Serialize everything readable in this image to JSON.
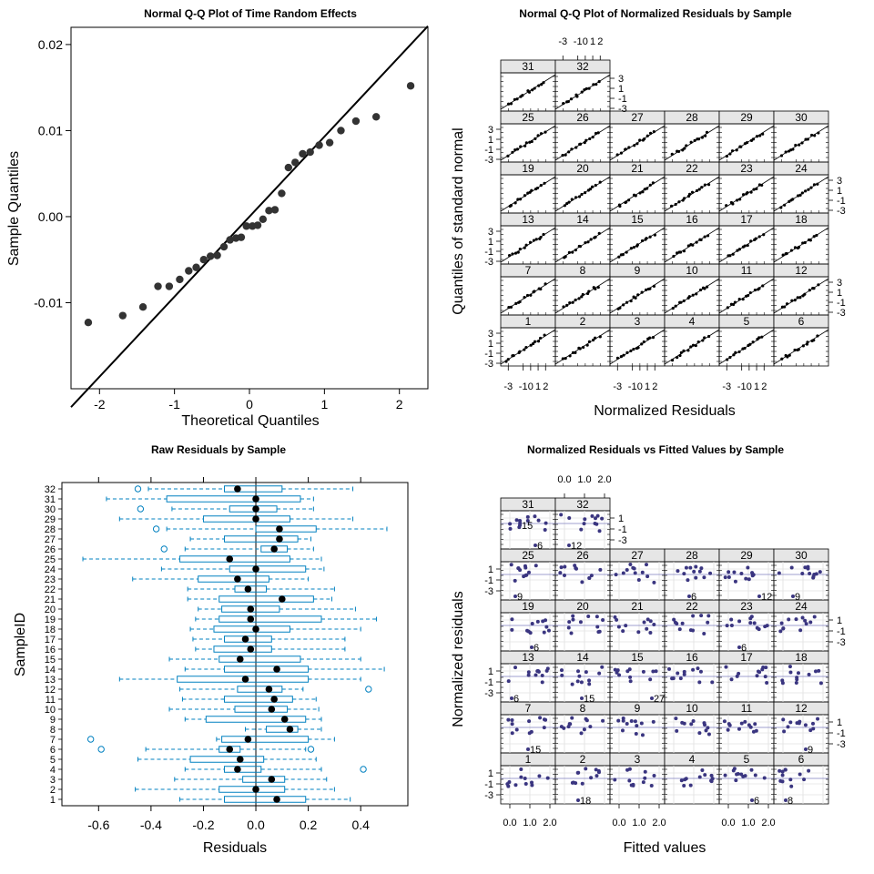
{
  "chart_data": [
    {
      "id": "qq_random",
      "type": "scatter",
      "title": "Normal Q-Q Plot of Time Random Effects",
      "xlabel": "Theoretical Quantiles",
      "ylabel": "Sample Quantiles",
      "xlim": [
        -2.38,
        2.38
      ],
      "ylim": [
        -0.02,
        0.022
      ],
      "xticks": [
        -2,
        -1,
        0,
        1,
        2
      ],
      "xtick_labels": [
        "-2",
        "-1",
        "0",
        "1",
        "2"
      ],
      "yticks": [
        -0.01,
        0.0,
        0.01,
        0.02
      ],
      "ytick_labels": [
        "-0.01",
        "0.00",
        "0.01",
        "0.02"
      ],
      "reference_line": {
        "slope": 0.0093,
        "intercept": 0.0
      },
      "points": [
        [
          -2.15,
          -0.0123
        ],
        [
          -1.69,
          -0.0115
        ],
        [
          -1.42,
          -0.0105
        ],
        [
          -1.22,
          -0.0081
        ],
        [
          -1.07,
          -0.0081
        ],
        [
          -0.93,
          -0.0073
        ],
        [
          -0.81,
          -0.0063
        ],
        [
          -0.71,
          -0.0059
        ],
        [
          -0.61,
          -0.005
        ],
        [
          -0.52,
          -0.0046
        ],
        [
          -0.43,
          -0.0045
        ],
        [
          -0.34,
          -0.0035
        ],
        [
          -0.26,
          -0.0027
        ],
        [
          -0.18,
          -0.0025
        ],
        [
          -0.11,
          -0.0024
        ],
        [
          -0.04,
          -0.0011
        ],
        [
          0.04,
          -0.0011
        ],
        [
          0.11,
          -0.001
        ],
        [
          0.18,
          -0.0003
        ],
        [
          0.26,
          0.0007
        ],
        [
          0.34,
          0.0008
        ],
        [
          0.43,
          0.0027
        ],
        [
          0.52,
          0.0057
        ],
        [
          0.61,
          0.0063
        ],
        [
          0.71,
          0.0073
        ],
        [
          0.81,
          0.0075
        ],
        [
          0.93,
          0.0083
        ],
        [
          1.07,
          0.0086
        ],
        [
          1.22,
          0.01
        ],
        [
          1.42,
          0.0111
        ],
        [
          1.69,
          0.0116
        ],
        [
          2.15,
          0.0152
        ]
      ]
    },
    {
      "id": "qq_panels",
      "type": "scatter",
      "title": "Normal Q-Q Plot of Normalized Residuals by Sample",
      "xlabel": "Normalized Residuals",
      "ylabel": "Quantiles of standard normal",
      "axis_ticks": [
        "-3",
        "-1",
        "0",
        "1",
        "2"
      ],
      "y_axis_ticks": [
        "3",
        "1",
        "-1",
        "-3"
      ],
      "panels": [
        "1",
        "2",
        "3",
        "4",
        "5",
        "6",
        "7",
        "8",
        "9",
        "10",
        "11",
        "12",
        "13",
        "14",
        "15",
        "16",
        "17",
        "18",
        "19",
        "20",
        "21",
        "22",
        "23",
        "24",
        "25",
        "26",
        "27",
        "28",
        "29",
        "30",
        "31",
        "32"
      ]
    },
    {
      "id": "raw_box",
      "type": "box",
      "title": "Raw Residuals by Sample",
      "xlabel": "Residuals",
      "ylabel": "SampleID",
      "xlim": [
        -0.74,
        0.58
      ],
      "xticks": [
        -0.6,
        -0.4,
        -0.2,
        0.0,
        0.2,
        0.4
      ],
      "xtick_labels": [
        "-0.6",
        "-0.4",
        "-0.2",
        "0.0",
        "0.2",
        "0.4"
      ],
      "categories": [
        "1",
        "2",
        "3",
        "4",
        "5",
        "6",
        "7",
        "8",
        "9",
        "10",
        "11",
        "12",
        "13",
        "14",
        "15",
        "16",
        "17",
        "18",
        "19",
        "20",
        "21",
        "22",
        "23",
        "24",
        "25",
        "26",
        "27",
        "28",
        "29",
        "30",
        "31",
        "32"
      ],
      "boxes": [
        {
          "min": -0.29,
          "q1": -0.12,
          "median": 0.08,
          "q3": 0.19,
          "max": 0.36
        },
        {
          "min": -0.46,
          "q1": -0.14,
          "median": 0.0,
          "q3": 0.11,
          "max": 0.3
        },
        {
          "min": -0.31,
          "q1": -0.05,
          "median": 0.06,
          "q3": 0.11,
          "max": 0.27
        },
        {
          "min": -0.27,
          "q1": -0.12,
          "median": -0.07,
          "q3": 0.02,
          "max": 0.25,
          "outliers": [
            0.41
          ]
        },
        {
          "min": -0.45,
          "q1": -0.25,
          "median": -0.06,
          "q3": 0.03,
          "max": 0.23
        },
        {
          "min": -0.42,
          "q1": -0.14,
          "median": -0.1,
          "q3": -0.06,
          "max": 0.19,
          "outliers": [
            -0.59,
            0.21
          ]
        },
        {
          "min": -0.15,
          "q1": -0.13,
          "median": -0.03,
          "q3": 0.2,
          "max": 0.3,
          "outliers": [
            -0.63
          ]
        },
        {
          "min": -0.04,
          "q1": 0.04,
          "median": 0.13,
          "q3": 0.16,
          "max": 0.25
        },
        {
          "min": -0.27,
          "q1": -0.19,
          "median": 0.11,
          "q3": 0.19,
          "max": 0.25
        },
        {
          "min": -0.33,
          "q1": -0.08,
          "median": 0.06,
          "q3": 0.12,
          "max": 0.24
        },
        {
          "min": -0.28,
          "q1": -0.12,
          "median": 0.07,
          "q3": 0.14,
          "max": 0.23
        },
        {
          "min": -0.29,
          "q1": -0.07,
          "median": 0.05,
          "q3": 0.1,
          "max": 0.18,
          "outliers": [
            0.43
          ]
        },
        {
          "min": -0.52,
          "q1": -0.3,
          "median": -0.04,
          "q3": 0.2,
          "max": 0.4
        },
        {
          "min": -0.27,
          "q1": -0.12,
          "median": 0.08,
          "q3": 0.2,
          "max": 0.49
        },
        {
          "min": -0.33,
          "q1": -0.14,
          "median": -0.06,
          "q3": 0.17,
          "max": 0.4
        },
        {
          "min": -0.23,
          "q1": -0.16,
          "median": -0.02,
          "q3": 0.06,
          "max": 0.34
        },
        {
          "min": -0.24,
          "q1": -0.12,
          "median": -0.04,
          "q3": 0.06,
          "max": 0.34
        },
        {
          "min": -0.25,
          "q1": -0.16,
          "median": 0.0,
          "q3": 0.13,
          "max": 0.4
        },
        {
          "min": -0.23,
          "q1": -0.14,
          "median": -0.02,
          "q3": 0.25,
          "max": 0.46
        },
        {
          "min": -0.22,
          "q1": -0.13,
          "median": -0.02,
          "q3": 0.09,
          "max": 0.38
        },
        {
          "min": -0.26,
          "q1": -0.14,
          "median": 0.1,
          "q3": 0.22,
          "max": 0.29
        },
        {
          "min": -0.26,
          "q1": -0.08,
          "median": -0.03,
          "q3": 0.04,
          "max": 0.3
        },
        {
          "min": -0.47,
          "q1": -0.22,
          "median": -0.07,
          "q3": 0.05,
          "max": 0.2
        },
        {
          "min": -0.36,
          "q1": -0.1,
          "median": 0.0,
          "q3": 0.19,
          "max": 0.26
        },
        {
          "min": -0.66,
          "q1": -0.29,
          "median": -0.1,
          "q3": 0.13,
          "max": 0.25
        },
        {
          "min": -0.27,
          "q1": 0.02,
          "median": 0.07,
          "q3": 0.12,
          "max": 0.22,
          "outliers": [
            -0.35
          ]
        },
        {
          "min": -0.25,
          "q1": -0.12,
          "median": 0.09,
          "q3": 0.16,
          "max": 0.21
        },
        {
          "min": -0.34,
          "q1": 0.0,
          "median": 0.09,
          "q3": 0.23,
          "max": 0.5,
          "outliers": [
            -0.38
          ]
        },
        {
          "min": -0.52,
          "q1": -0.2,
          "median": 0.0,
          "q3": 0.13,
          "max": 0.37
        },
        {
          "min": -0.32,
          "q1": -0.1,
          "median": 0.0,
          "q3": 0.08,
          "max": 0.22,
          "outliers": [
            -0.44
          ]
        },
        {
          "min": -0.57,
          "q1": -0.34,
          "median": 0.0,
          "q3": 0.17,
          "max": 0.22
        },
        {
          "min": -0.41,
          "q1": -0.12,
          "median": -0.07,
          "q3": 0.1,
          "max": 0.37,
          "outliers": [
            -0.45
          ]
        }
      ]
    },
    {
      "id": "fitted_panels",
      "type": "scatter",
      "title": "Normalized Residuals vs Fitted Values by Sample",
      "xlabel": "Fitted values",
      "ylabel": "Normalized residuals",
      "axis_ticks": [
        "0.0",
        "1.0",
        "2.0"
      ],
      "y_axis_ticks": [
        "1",
        "-1",
        "-3"
      ],
      "panels": [
        "1",
        "2",
        "3",
        "4",
        "5",
        "6",
        "7",
        "8",
        "9",
        "10",
        "11",
        "12",
        "13",
        "14",
        "15",
        "16",
        "17",
        "18",
        "19",
        "20",
        "21",
        "22",
        "23",
        "24",
        "25",
        "26",
        "27",
        "28",
        "29",
        "30",
        "31",
        "32"
      ],
      "point_labels": [
        {
          "panel": "2",
          "label": "18"
        },
        {
          "panel": "5",
          "label": "6"
        },
        {
          "panel": "6",
          "label": "8"
        },
        {
          "panel": "7",
          "label": "15"
        },
        {
          "panel": "12",
          "label": "9"
        },
        {
          "panel": "13",
          "label": "6"
        },
        {
          "panel": "14",
          "label": "15"
        },
        {
          "panel": "15",
          "label": "27"
        },
        {
          "panel": "19",
          "label": "6"
        },
        {
          "panel": "23",
          "label": "6"
        },
        {
          "panel": "25",
          "label": "9"
        },
        {
          "panel": "28",
          "label": "6"
        },
        {
          "panel": "29",
          "label": "12"
        },
        {
          "panel": "30",
          "label": "9"
        },
        {
          "panel": "31",
          "label": "6"
        },
        {
          "panel": "31",
          "label": "15"
        },
        {
          "panel": "32",
          "label": "12"
        }
      ]
    }
  ],
  "colors": {
    "box": "#0080c0",
    "scatter": "#3a3580",
    "strip_bg": "#e6e6e6",
    "qq_point": "#333333"
  }
}
